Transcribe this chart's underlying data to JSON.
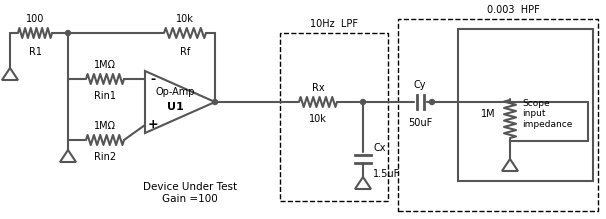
{
  "background_color": "#ffffff",
  "line_color": "#555555",
  "line_width": 1.5,
  "components": {
    "R1_label": "100",
    "R1_name": "R1",
    "Rf_label": "10k",
    "Rf_name": "Rf",
    "Rin1_label": "1MΩ",
    "Rin1_name": "Rin1",
    "Rin2_label": "1MΩ",
    "Rin2_name": "Rin2",
    "Rx_label": "10k",
    "Rx_name": "Rx",
    "Cx_label": "1.5uF",
    "Cx_name": "Cx",
    "Cy_label": "50uF",
    "Cy_name": "Cy",
    "R_scope_label": "1M",
    "opamp_label": "Op-Amp",
    "opamp_name": "U1",
    "dut_label": "Device Under Test",
    "dut_gain": "Gain =100",
    "lpf_label": "10Hz  LPF",
    "hpf_label": "0.003  HPF",
    "scope_label": "Scope\ninput\nimpedance"
  }
}
